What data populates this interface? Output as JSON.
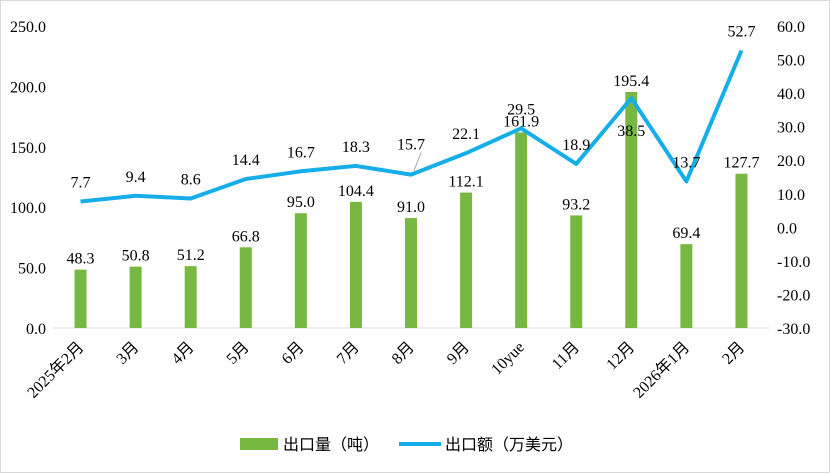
{
  "chart_data": {
    "type": "bar+line",
    "categories": [
      "2025年2月",
      "3月",
      "4月",
      "5月",
      "6月",
      "7月",
      "8月",
      "9月",
      "10yue",
      "11月",
      "12月",
      "2026年1月",
      "2月"
    ],
    "series": [
      {
        "name": "出口量（吨）",
        "type": "bar",
        "axis": "left",
        "color": "#77b843",
        "values": [
          48.3,
          50.8,
          51.2,
          66.8,
          95.0,
          104.4,
          91.0,
          112.1,
          161.9,
          93.2,
          195.4,
          69.4,
          127.7
        ]
      },
      {
        "name": "出口额（万美元）",
        "type": "line",
        "axis": "right",
        "color": "#16aee8",
        "values": [
          7.7,
          9.4,
          8.6,
          14.4,
          16.7,
          18.3,
          15.7,
          22.1,
          29.5,
          18.9,
          38.5,
          13.7,
          52.7
        ]
      }
    ],
    "y_left": {
      "min": 0,
      "max": 250,
      "step": 50,
      "ticks": [
        "0.0",
        "50.0",
        "100.0",
        "150.0",
        "200.0",
        "250.0"
      ]
    },
    "y_right": {
      "min": -30,
      "max": 60,
      "step": 10,
      "ticks": [
        "-30.0",
        "-20.0",
        "-10.0",
        "0.0",
        "10.0",
        "20.0",
        "30.0",
        "40.0",
        "50.0",
        "60.0"
      ]
    },
    "grid": false,
    "legend": "bottom",
    "title": ""
  }
}
